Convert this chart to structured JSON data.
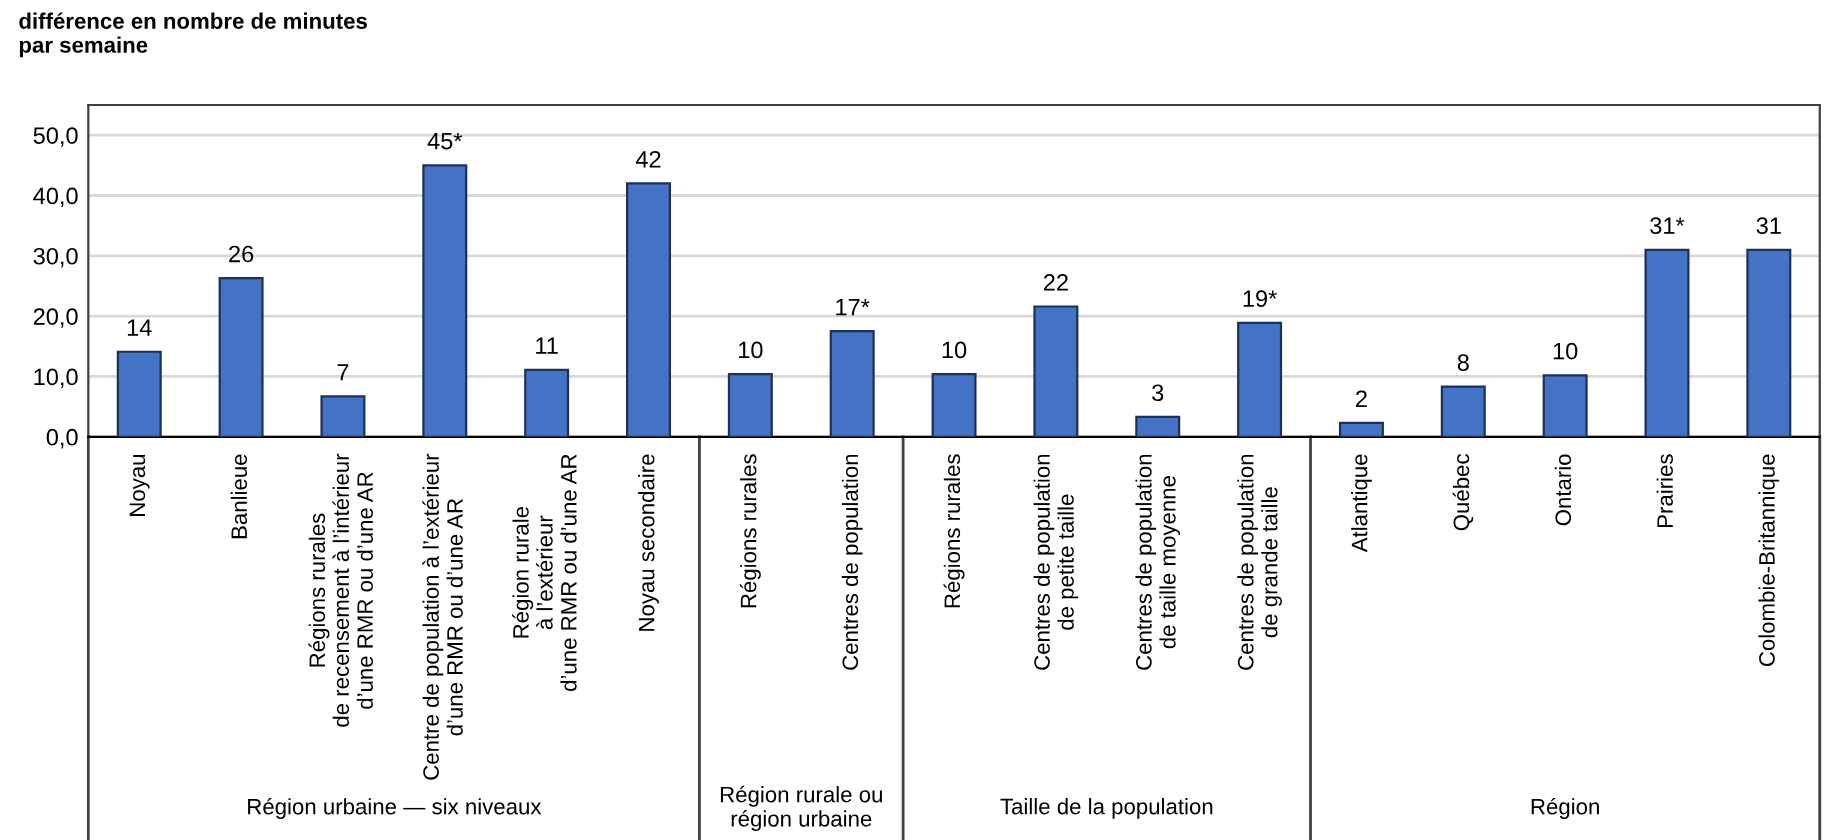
{
  "chart_data": {
    "type": "bar",
    "ylabel": "différence en nombre de minutes\npar semaine",
    "categories": [
      "Noyau",
      "Banlieue",
      "Régions rurales\nde recensement à l’intérieur\nd’une RMR ou d’une AR",
      "Centre de population à l’extérieur\nd’une RMR ou d’une AR",
      "Région rurale\nà l’extérieur\nd’une RMR ou d’une AR",
      "Noyau secondaire",
      "Régions rurales",
      "Centres de population",
      "Régions rurales",
      "Centres de population\nde petite taille",
      "Centres de population\nde taille moyenne",
      "Centres de population\nde grande taille",
      "Atlantique",
      "Québec",
      "Ontario",
      "Prairies",
      "Colombie-Britannique"
    ],
    "values": [
      14.1,
      26.3,
      6.7,
      45.0,
      11.1,
      42.0,
      10.4,
      17.5,
      10.4,
      21.6,
      3.3,
      18.9,
      2.3,
      8.3,
      10.2,
      31.0,
      31.0
    ],
    "value_labels": [
      "14",
      "26",
      "7",
      "45*",
      "11",
      "42",
      "10",
      "17*",
      "10",
      "22",
      "3",
      "19*",
      "2",
      "8",
      "10",
      "31*",
      "31"
    ],
    "color": "#4472c4",
    "ylim": [
      0,
      55
    ],
    "yticks": [
      {
        "value": 0,
        "label": "0,0"
      },
      {
        "value": 10,
        "label": "10,0"
      },
      {
        "value": 20,
        "label": "20,0"
      },
      {
        "value": 30,
        "label": "30,0"
      },
      {
        "value": 40,
        "label": "40,0"
      },
      {
        "value": 50,
        "label": "50,0"
      }
    ],
    "grid": "y",
    "annotations": [
      "Région urbaine — six niveaux",
      "Région rurale ou\nrégion urbaine",
      "Taille de la population",
      "Région"
    ]
  }
}
